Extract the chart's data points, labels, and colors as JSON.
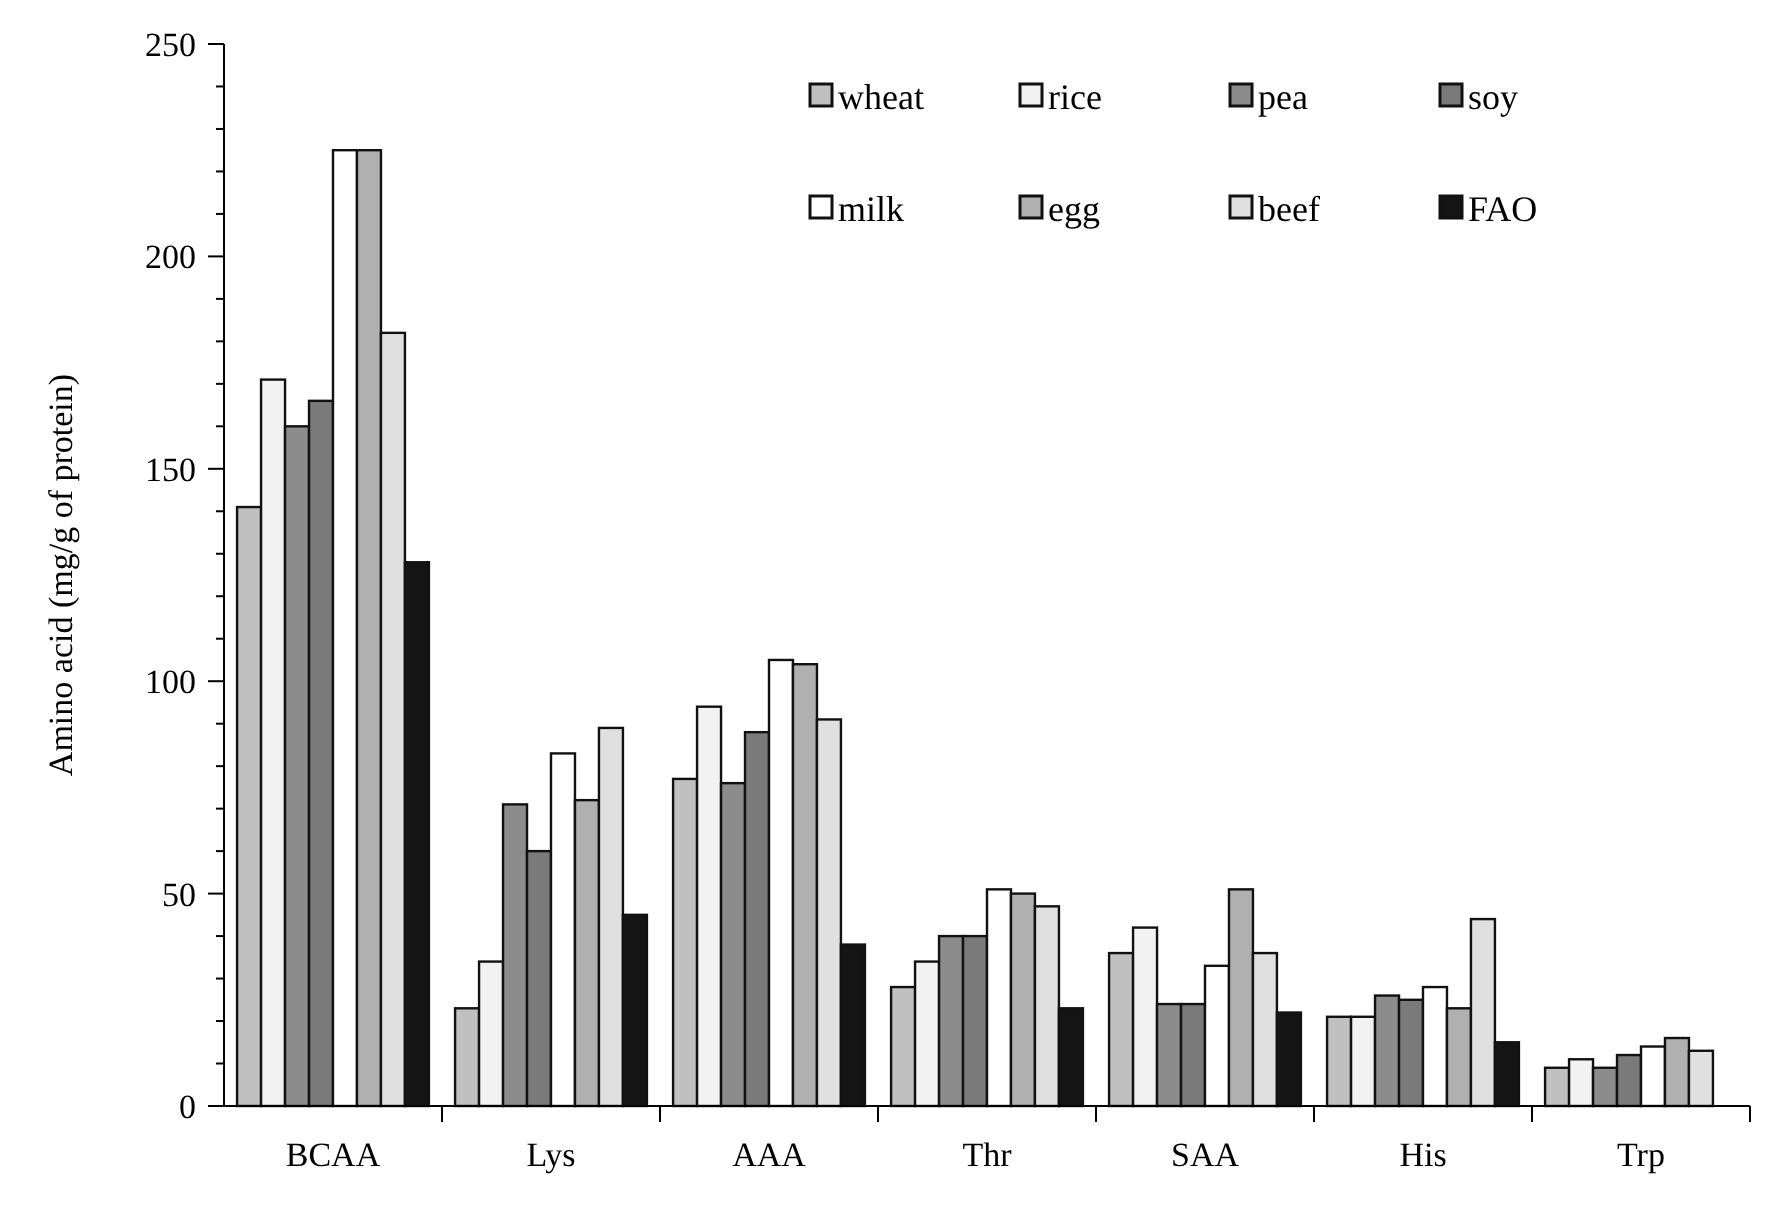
{
  "chart_data": {
    "type": "bar",
    "ylabel": "Amino acid (mg/g of protein)",
    "categories": [
      "BCAA",
      "Lys",
      "AAA",
      "Thr",
      "SAA",
      "His",
      "Trp"
    ],
    "series": [
      {
        "name": "wheat",
        "color": "#c0c0c0",
        "values": [
          141,
          23,
          77,
          28,
          36,
          21,
          9
        ]
      },
      {
        "name": "rice",
        "color": "#f2f2f2",
        "values": [
          171,
          34,
          94,
          34,
          42,
          21,
          11
        ]
      },
      {
        "name": "pea",
        "color": "#8c8c8c",
        "values": [
          160,
          71,
          76,
          40,
          24,
          26,
          9
        ]
      },
      {
        "name": "soy",
        "color": "#7a7a7a",
        "values": [
          166,
          60,
          88,
          40,
          24,
          25,
          12
        ]
      },
      {
        "name": "milk",
        "color": "#ffffff",
        "values": [
          225,
          83,
          105,
          51,
          33,
          28,
          14
        ]
      },
      {
        "name": "egg",
        "color": "#b0b0b0",
        "values": [
          225,
          72,
          104,
          50,
          51,
          23,
          16
        ]
      },
      {
        "name": "beef",
        "color": "#e0e0e0",
        "values": [
          182,
          89,
          91,
          47,
          36,
          44,
          13
        ]
      },
      {
        "name": "FAO",
        "color": "#141414",
        "values": [
          128,
          45,
          38,
          23,
          22,
          15,
          null
        ]
      }
    ],
    "ylim": [
      0,
      250
    ],
    "yticks": [
      0,
      {
        "value": 10,
        "label": null
      },
      {
        "value": 20,
        "label": null
      },
      {
        "value": 30,
        "label": null
      },
      {
        "value": 40,
        "label": null
      },
      50,
      {
        "value": 60,
        "label": null
      },
      {
        "value": 70,
        "label": null
      },
      {
        "value": 80,
        "label": null
      },
      {
        "value": 90,
        "label": null
      },
      100,
      {
        "value": 110,
        "label": null
      },
      {
        "value": 120,
        "label": null
      },
      {
        "value": 130,
        "label": null
      },
      {
        "value": 140,
        "label": null
      },
      150,
      {
        "value": 160,
        "label": null
      },
      {
        "value": 170,
        "label": null
      },
      {
        "value": 180,
        "label": null
      },
      {
        "value": 190,
        "label": null
      },
      200,
      {
        "value": 210,
        "label": null
      },
      {
        "value": 220,
        "label": null
      },
      {
        "value": 230,
        "label": null
      },
      {
        "value": 240,
        "label": null
      },
      250
    ],
    "grid": false,
    "legend": "top right"
  }
}
